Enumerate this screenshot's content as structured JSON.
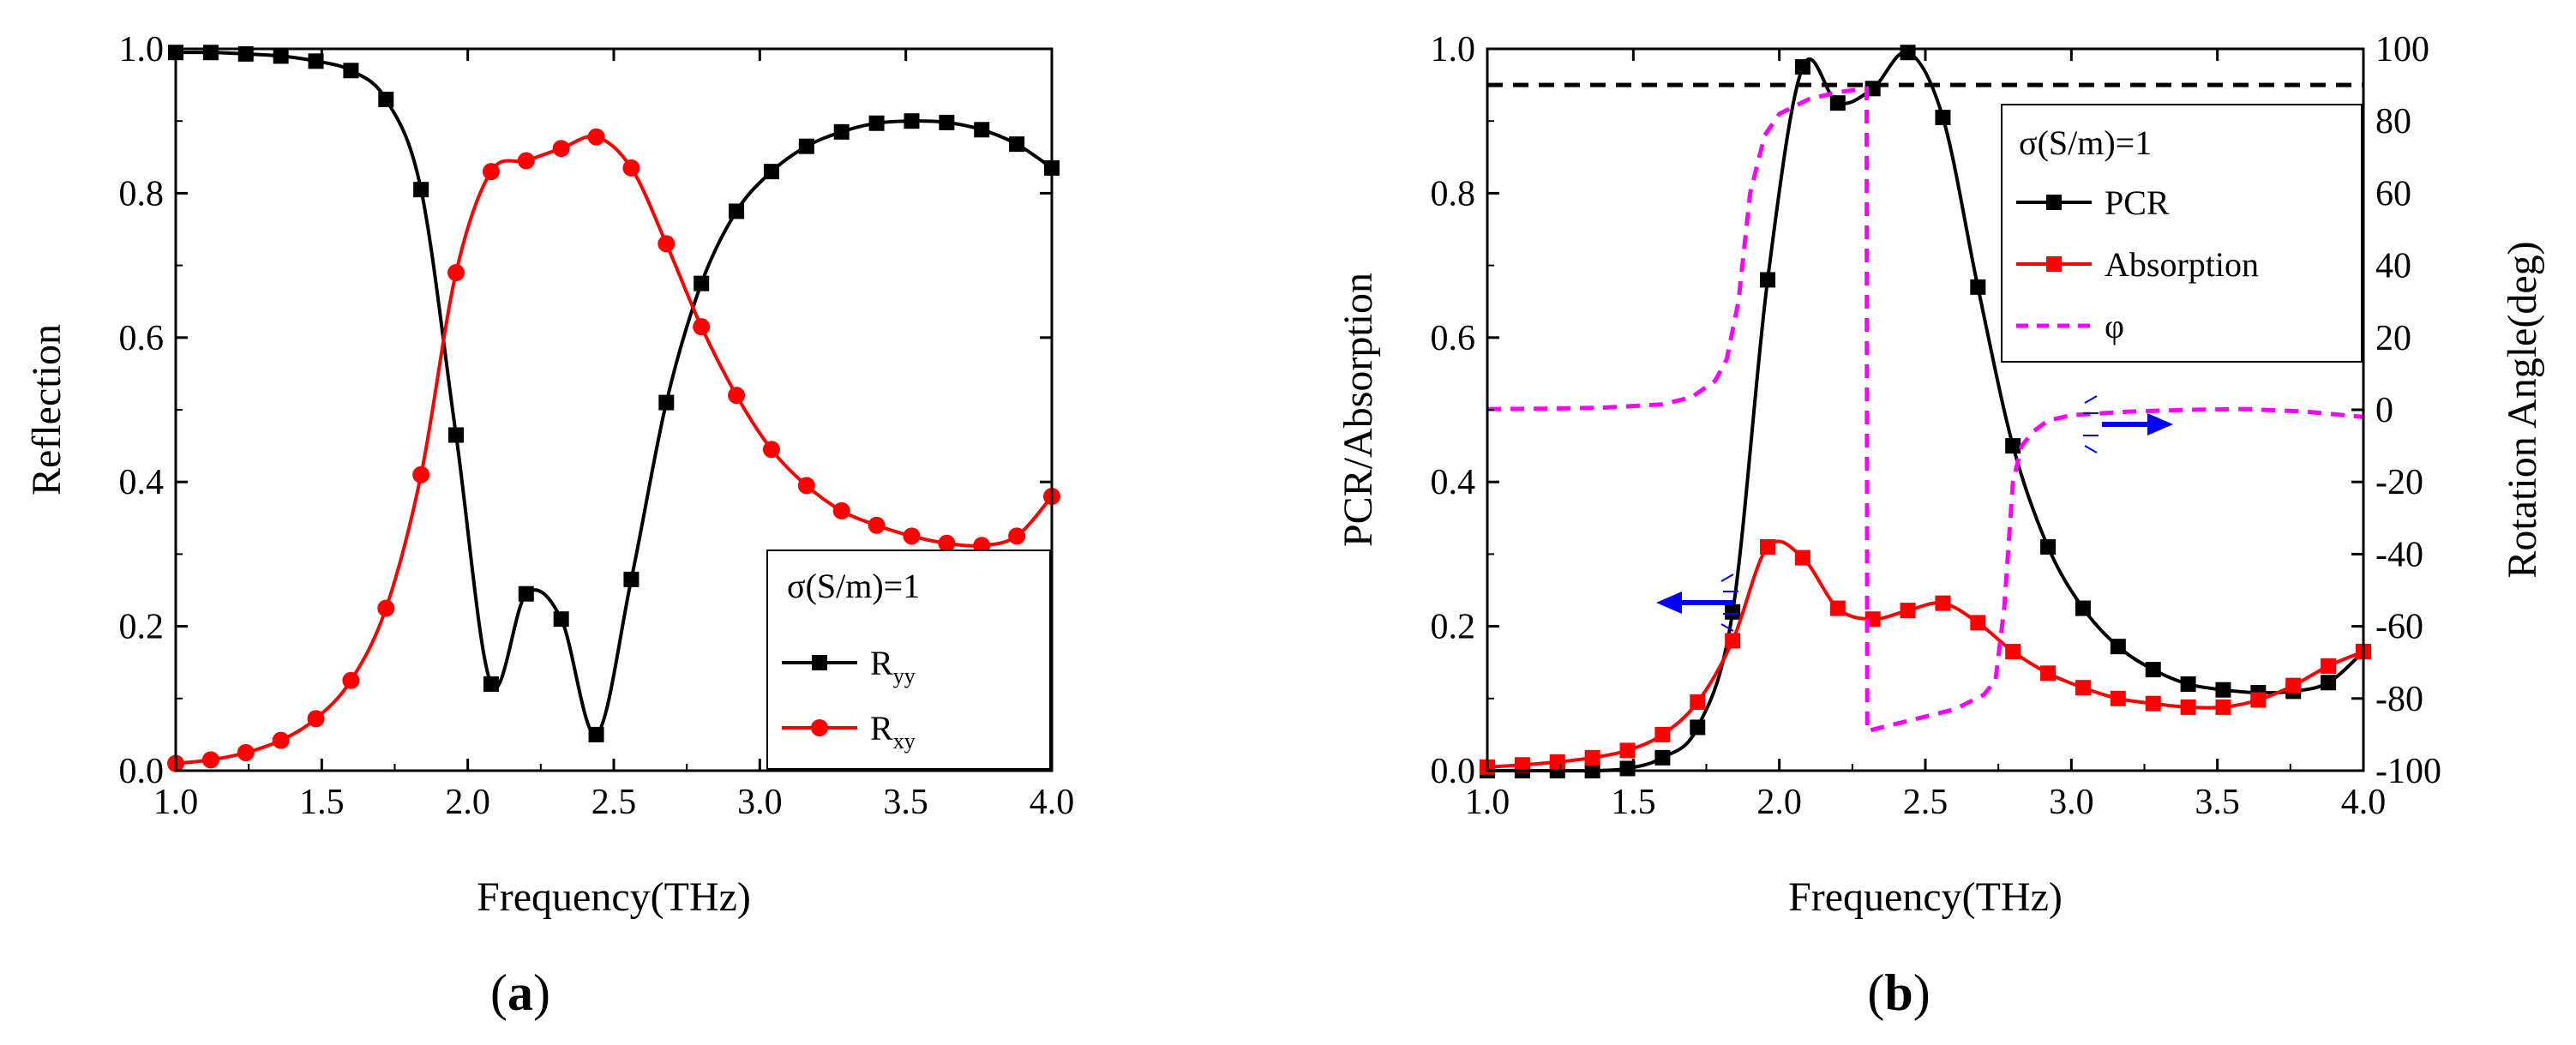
{
  "chart_data": [
    {
      "panel_label": "(a)",
      "type": "line",
      "xlabel": "Frequency(THz)",
      "ylabel": "Reflection",
      "xlim": [
        1.0,
        4.0
      ],
      "ylim": [
        0.0,
        1.0
      ],
      "xticks": [
        "1.0",
        "1.5",
        "2.0",
        "2.5",
        "3.0",
        "3.5",
        "4.0"
      ],
      "yticks": [
        "0.0",
        "0.2",
        "0.4",
        "0.6",
        "0.8",
        "1.0"
      ],
      "legend": {
        "position": "bottom-right",
        "title": "σ(S/m)=1"
      },
      "series": [
        {
          "name": "R",
          "sub": "yy",
          "color": "#000000",
          "marker": "square",
          "axis": "left",
          "x": [
            1.0,
            1.12,
            1.24,
            1.36,
            1.48,
            1.6,
            1.72,
            1.84,
            1.96,
            2.08,
            2.2,
            2.32,
            2.44,
            2.56,
            2.68,
            2.8,
            2.92,
            3.04,
            3.16,
            3.28,
            3.4,
            3.52,
            3.64,
            3.76,
            3.88,
            4.0
          ],
          "y": [
            0.995,
            0.995,
            0.993,
            0.99,
            0.983,
            0.97,
            0.93,
            0.805,
            0.465,
            0.12,
            0.245,
            0.21,
            0.05,
            0.265,
            0.51,
            0.675,
            0.775,
            0.83,
            0.865,
            0.885,
            0.897,
            0.9,
            0.898,
            0.888,
            0.868,
            0.835
          ]
        },
        {
          "name": "R",
          "sub": "xy",
          "color": "#ff0000",
          "marker": "circle",
          "axis": "left",
          "x": [
            1.0,
            1.12,
            1.24,
            1.36,
            1.48,
            1.6,
            1.72,
            1.84,
            1.96,
            2.08,
            2.2,
            2.32,
            2.44,
            2.56,
            2.68,
            2.8,
            2.92,
            3.04,
            3.16,
            3.28,
            3.4,
            3.52,
            3.64,
            3.76,
            3.88,
            4.0
          ],
          "y": [
            0.01,
            0.015,
            0.025,
            0.042,
            0.072,
            0.125,
            0.225,
            0.41,
            0.69,
            0.83,
            0.845,
            0.862,
            0.878,
            0.835,
            0.73,
            0.615,
            0.52,
            0.445,
            0.395,
            0.36,
            0.34,
            0.325,
            0.315,
            0.312,
            0.325,
            0.38
          ]
        }
      ]
    },
    {
      "panel_label": "(b)",
      "type": "line",
      "xlabel": "Frequency(THz)",
      "ylabel": "PCR/Absorption",
      "y2label": "Rotation Angle(deg)",
      "xlim": [
        1.0,
        4.0
      ],
      "ylim": [
        0.0,
        1.0
      ],
      "y2lim": [
        -100,
        100
      ],
      "xticks": [
        "1.0",
        "1.5",
        "2.0",
        "2.5",
        "3.0",
        "3.5",
        "4.0"
      ],
      "yticks": [
        "0.0",
        "0.2",
        "0.4",
        "0.6",
        "0.8",
        "1.0"
      ],
      "y2ticks": [
        "-100",
        "-80",
        "-60",
        "-40",
        "-20",
        "0",
        "20",
        "40",
        "60",
        "80",
        "100"
      ],
      "reference_line_y": 0.95,
      "legend": {
        "position": "top-right",
        "title": "σ(S/m)=1"
      },
      "series": [
        {
          "name": "PCR",
          "color": "#000000",
          "marker": "square",
          "axis": "left",
          "x": [
            1.0,
            1.12,
            1.24,
            1.36,
            1.48,
            1.6,
            1.72,
            1.84,
            1.96,
            2.08,
            2.2,
            2.32,
            2.44,
            2.56,
            2.68,
            2.8,
            2.92,
            3.04,
            3.16,
            3.28,
            3.4,
            3.52,
            3.64,
            3.76,
            3.88,
            4.0
          ],
          "y": [
            0.0,
            0.0,
            0.0,
            0.0,
            0.003,
            0.018,
            0.06,
            0.22,
            0.68,
            0.975,
            0.925,
            0.945,
            0.995,
            0.905,
            0.67,
            0.45,
            0.31,
            0.225,
            0.172,
            0.14,
            0.12,
            0.112,
            0.108,
            0.11,
            0.122,
            0.165
          ]
        },
        {
          "name": "Absorption",
          "color": "#ff0000",
          "marker": "square",
          "axis": "left",
          "x": [
            1.0,
            1.12,
            1.24,
            1.36,
            1.48,
            1.6,
            1.72,
            1.84,
            1.96,
            2.08,
            2.2,
            2.32,
            2.44,
            2.56,
            2.68,
            2.8,
            2.92,
            3.04,
            3.16,
            3.28,
            3.4,
            3.52,
            3.64,
            3.76,
            3.88,
            4.0
          ],
          "y": [
            0.005,
            0.008,
            0.012,
            0.018,
            0.028,
            0.05,
            0.095,
            0.18,
            0.31,
            0.295,
            0.225,
            0.21,
            0.222,
            0.232,
            0.205,
            0.165,
            0.135,
            0.115,
            0.1,
            0.093,
            0.088,
            0.088,
            0.098,
            0.118,
            0.145,
            0.165
          ]
        },
        {
          "name": "φ",
          "color": "#ff00ff",
          "dashed": true,
          "marker": "none",
          "axis": "right",
          "x": [
            1.0,
            1.2,
            1.4,
            1.6,
            1.7,
            1.78,
            1.82,
            1.86,
            1.9,
            1.95,
            2.0,
            2.1,
            2.2,
            2.299,
            2.301,
            2.4,
            2.5,
            2.6,
            2.7,
            2.74,
            2.77,
            2.8,
            2.83,
            2.87,
            2.92,
            3.0,
            3.2,
            3.4,
            3.6,
            3.8,
            4.0
          ],
          "y": [
            0.2,
            0.3,
            0.6,
            1.5,
            3.5,
            8,
            14,
            30,
            60,
            76,
            82,
            86,
            88,
            89,
            -89,
            -87,
            -85,
            -83,
            -79,
            -75,
            -55,
            -20,
            -10,
            -6,
            -3,
            -1.5,
            -0.5,
            0,
            0.2,
            -0.5,
            -2
          ]
        }
      ]
    }
  ]
}
